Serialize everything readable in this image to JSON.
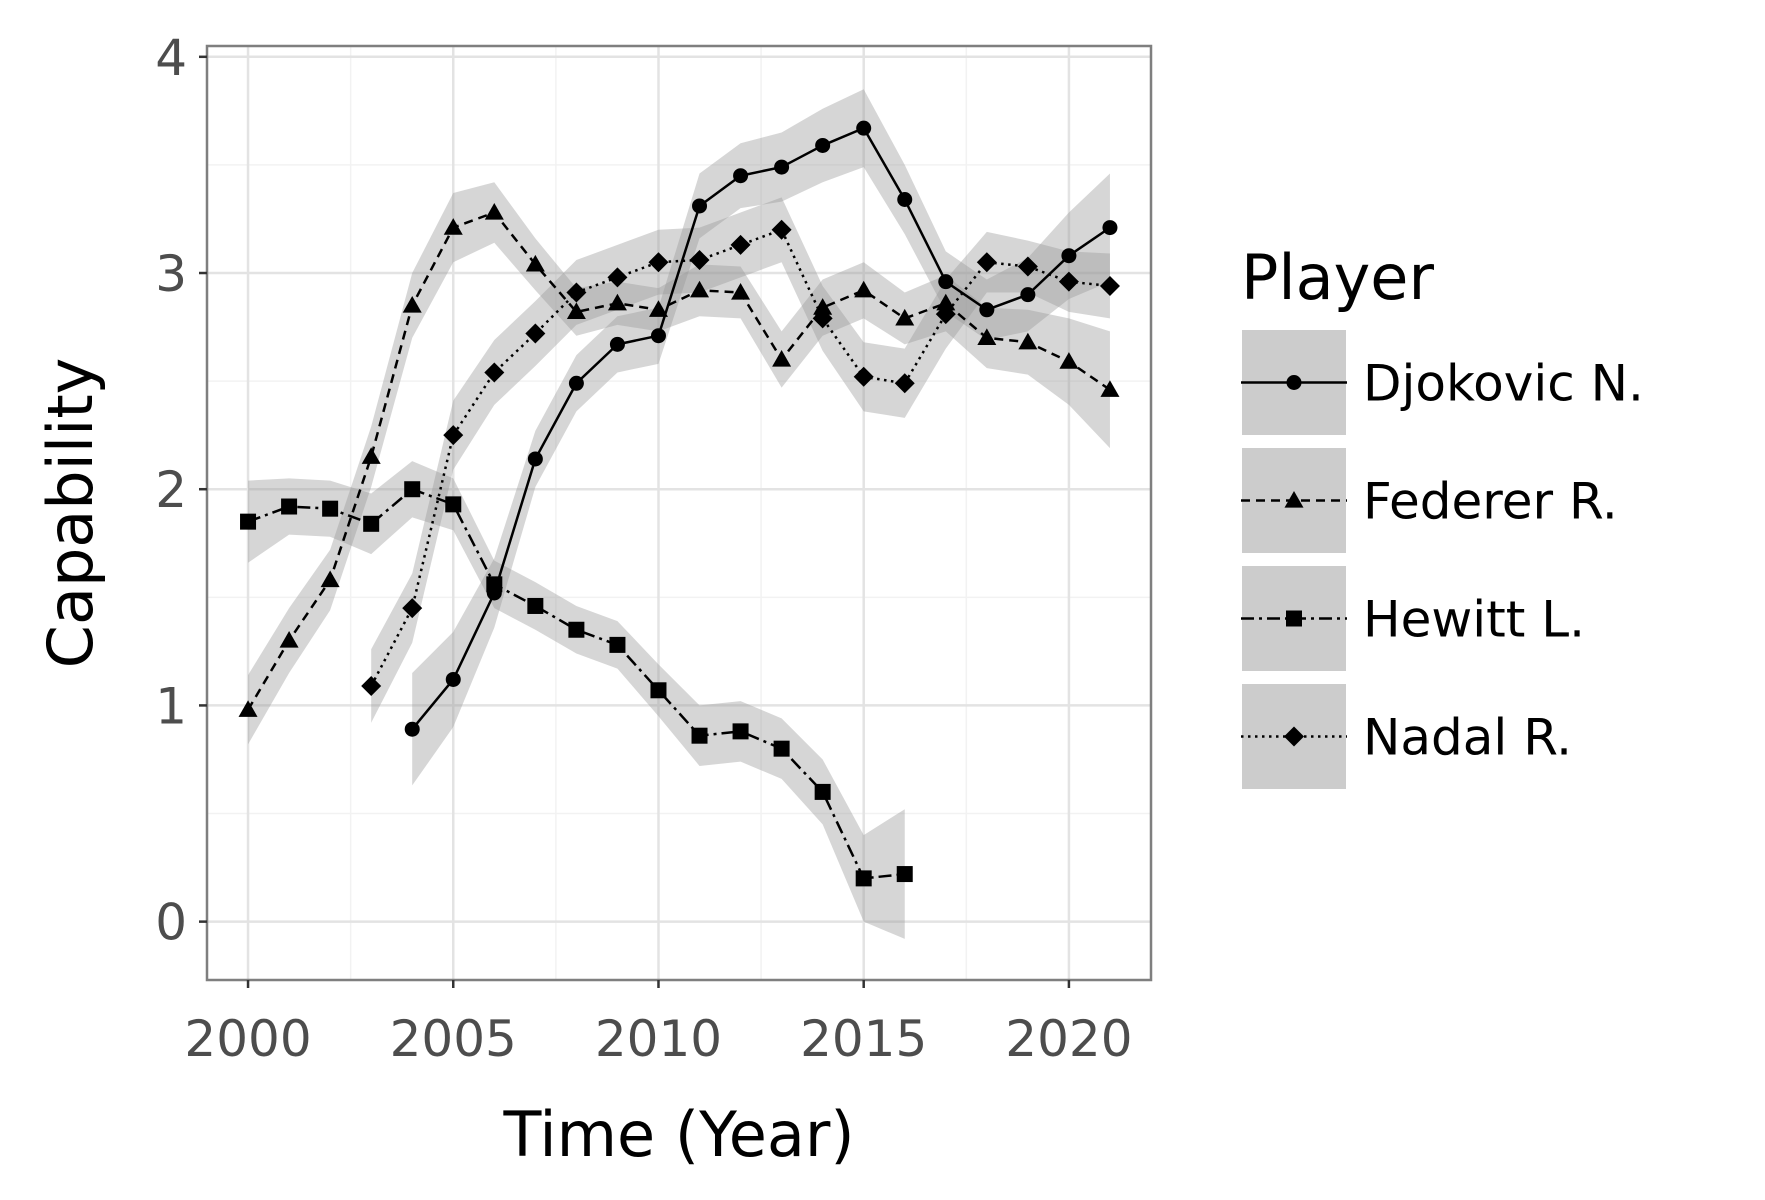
{
  "chart_data": {
    "type": "line",
    "title": "",
    "xlabel": "Time (Year)",
    "ylabel": "Capability",
    "xlim": [
      1999,
      2022
    ],
    "ylim": [
      -0.27,
      4.05
    ],
    "x_ticks": [
      2000,
      2005,
      2010,
      2015,
      2020
    ],
    "y_ticks": [
      0,
      1,
      2,
      3,
      4
    ],
    "grid": true,
    "confidence_band": true,
    "legend": {
      "title": "Player",
      "placement": "right"
    },
    "series": [
      {
        "name": "Djokovic N.",
        "marker": "circle",
        "line_style": "solid",
        "x": [
          2004,
          2005,
          2006,
          2007,
          2008,
          2009,
          2010,
          2011,
          2012,
          2013,
          2014,
          2015,
          2016,
          2017,
          2018,
          2019,
          2020,
          2021
        ],
        "values": [
          0.89,
          1.12,
          1.52,
          2.14,
          2.49,
          2.67,
          2.71,
          3.31,
          3.45,
          3.49,
          3.59,
          3.67,
          3.34,
          2.96,
          2.83,
          2.9,
          3.08,
          3.21
        ],
        "ci_halfwidth": [
          0.26,
          0.22,
          0.16,
          0.13,
          0.13,
          0.13,
          0.13,
          0.15,
          0.15,
          0.16,
          0.17,
          0.18,
          0.16,
          0.14,
          0.14,
          0.17,
          0.2,
          0.25
        ]
      },
      {
        "name": "Federer R.",
        "marker": "triangle",
        "line_style": "dashed",
        "x": [
          2000,
          2001,
          2002,
          2003,
          2004,
          2005,
          2006,
          2007,
          2008,
          2009,
          2010,
          2011,
          2012,
          2013,
          2014,
          2015,
          2016,
          2017,
          2018,
          2019,
          2020,
          2021
        ],
        "values": [
          0.98,
          1.3,
          1.58,
          2.15,
          2.85,
          3.21,
          3.28,
          3.04,
          2.82,
          2.86,
          2.83,
          2.92,
          2.91,
          2.6,
          2.84,
          2.92,
          2.79,
          2.86,
          2.7,
          2.68,
          2.59,
          2.46
        ],
        "ci_halfwidth": [
          0.16,
          0.15,
          0.14,
          0.14,
          0.15,
          0.16,
          0.14,
          0.12,
          0.11,
          0.1,
          0.1,
          0.12,
          0.12,
          0.13,
          0.13,
          0.13,
          0.12,
          0.13,
          0.14,
          0.15,
          0.2,
          0.27
        ]
      },
      {
        "name": "Hewitt L.",
        "marker": "square",
        "line_style": "dashdot",
        "x": [
          2000,
          2001,
          2002,
          2003,
          2004,
          2005,
          2006,
          2007,
          2008,
          2009,
          2010,
          2011,
          2012,
          2013,
          2014,
          2015,
          2016
        ],
        "values": [
          1.85,
          1.92,
          1.91,
          1.84,
          2.0,
          1.93,
          1.56,
          1.46,
          1.35,
          1.28,
          1.07,
          0.86,
          0.88,
          0.8,
          0.6,
          0.2,
          0.22
        ],
        "ci_halfwidth": [
          0.19,
          0.13,
          0.13,
          0.14,
          0.13,
          0.12,
          0.11,
          0.11,
          0.11,
          0.11,
          0.12,
          0.14,
          0.14,
          0.14,
          0.15,
          0.2,
          0.3
        ]
      },
      {
        "name": "Nadal R.",
        "marker": "diamond",
        "line_style": "dotted",
        "x": [
          2003,
          2004,
          2005,
          2006,
          2007,
          2008,
          2009,
          2010,
          2011,
          2012,
          2013,
          2014,
          2015,
          2016,
          2017,
          2018,
          2019,
          2020,
          2021
        ],
        "values": [
          1.09,
          1.45,
          2.25,
          2.54,
          2.72,
          2.91,
          2.98,
          3.05,
          3.06,
          3.13,
          3.2,
          2.79,
          2.52,
          2.49,
          2.81,
          3.05,
          3.03,
          2.96,
          2.94
        ],
        "ci_halfwidth": [
          0.17,
          0.16,
          0.16,
          0.15,
          0.15,
          0.15,
          0.15,
          0.15,
          0.15,
          0.15,
          0.15,
          0.15,
          0.16,
          0.16,
          0.16,
          0.14,
          0.12,
          0.14,
          0.15
        ]
      }
    ]
  }
}
